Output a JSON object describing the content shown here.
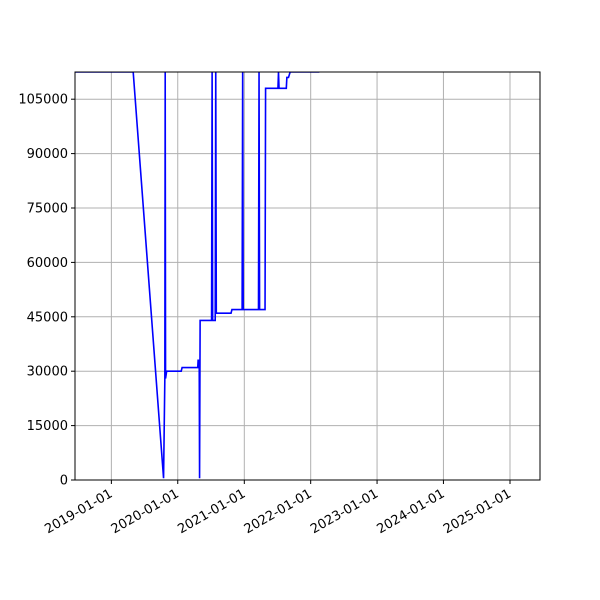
{
  "chart_data": {
    "type": "line",
    "title": "",
    "xlabel": "",
    "ylabel": "",
    "x_axis_type": "date",
    "xlim": [
      "2018-06-15",
      "2025-06-15"
    ],
    "ylim": [
      0,
      112500
    ],
    "grid": true,
    "colors": {
      "series": "#0000ff",
      "grid": "#b0b0b0",
      "axis": "#000000"
    },
    "x_ticks": [
      "2019-01-01",
      "2020-01-01",
      "2021-01-01",
      "2022-01-01",
      "2023-01-01",
      "2024-01-01",
      "2025-01-01"
    ],
    "y_ticks": [
      0,
      15000,
      30000,
      45000,
      60000,
      75000,
      90000,
      105000
    ],
    "series": [
      {
        "points": [
          [
            "2018-06-15",
            112500
          ],
          [
            "2019-05-01",
            112500
          ],
          [
            "2019-10-15",
            500
          ],
          [
            "2019-10-22",
            28000
          ],
          [
            "2019-10-24",
            112500
          ],
          [
            "2019-10-26",
            28000
          ],
          [
            "2019-11-01",
            30000
          ],
          [
            "2020-01-20",
            30000
          ],
          [
            "2020-01-25",
            31000
          ],
          [
            "2020-04-20",
            31000
          ],
          [
            "2020-04-22",
            33000
          ],
          [
            "2020-04-28",
            33000
          ],
          [
            "2020-04-30",
            500
          ],
          [
            "2020-05-03",
            44000
          ],
          [
            "2020-07-05",
            44000
          ],
          [
            "2020-07-08",
            112500
          ],
          [
            "2020-07-11",
            44000
          ],
          [
            "2020-07-25",
            44000
          ],
          [
            "2020-07-28",
            112500
          ],
          [
            "2020-07-31",
            46000
          ],
          [
            "2020-10-20",
            46000
          ],
          [
            "2020-10-25",
            47000
          ],
          [
            "2020-12-20",
            47000
          ],
          [
            "2020-12-23",
            112500
          ],
          [
            "2020-12-26",
            47000
          ],
          [
            "2021-03-20",
            47000
          ],
          [
            "2021-03-23",
            112500
          ],
          [
            "2021-03-26",
            47000
          ],
          [
            "2021-04-25",
            47000
          ],
          [
            "2021-04-28",
            108000
          ],
          [
            "2021-07-05",
            108000
          ],
          [
            "2021-07-08",
            112500
          ],
          [
            "2021-07-11",
            108000
          ],
          [
            "2021-08-20",
            108000
          ],
          [
            "2021-08-23",
            111000
          ],
          [
            "2021-09-01",
            111000
          ],
          [
            "2021-09-10",
            112500
          ],
          [
            "2022-02-15",
            112500
          ],
          [
            "2022-04-01",
            114000
          ]
        ]
      }
    ]
  }
}
